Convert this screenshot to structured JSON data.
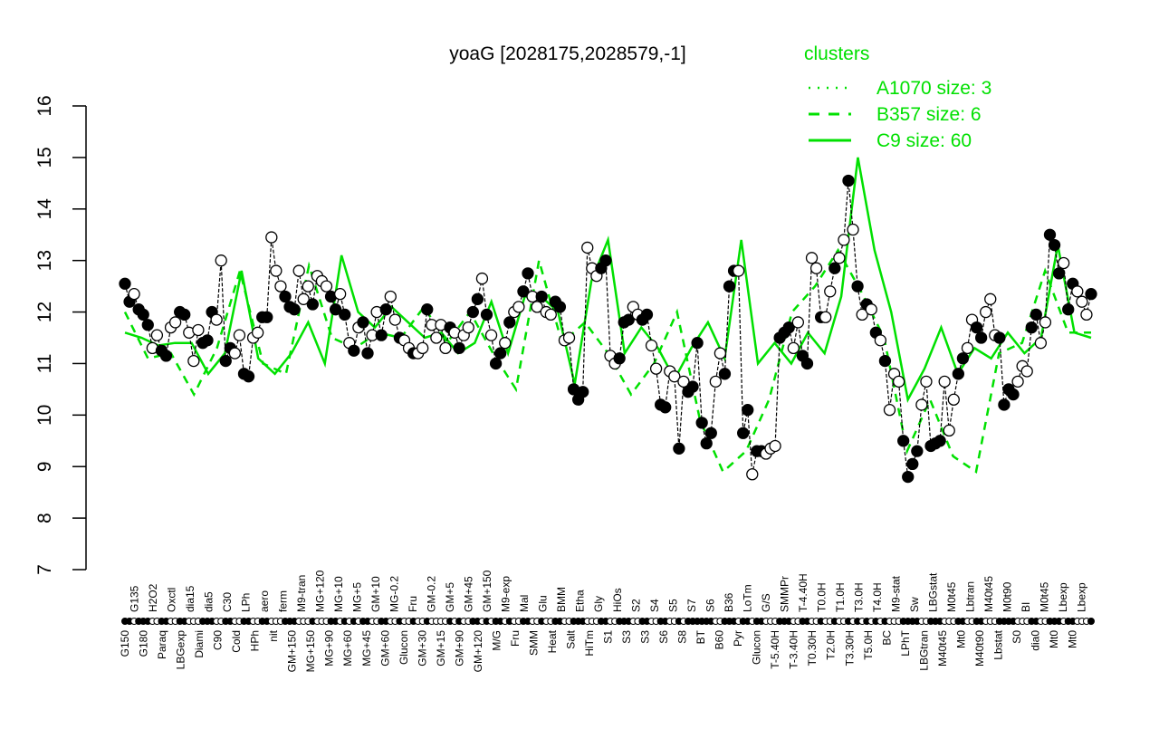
{
  "chart_data": {
    "type": "line",
    "title": "yoaG [2028175,2028579,-1]",
    "xlabel": "",
    "ylabel": "",
    "ylim": [
      7,
      16
    ],
    "yticks": [
      7,
      8,
      9,
      10,
      11,
      12,
      13,
      14,
      15,
      16
    ],
    "grid": false,
    "legend": {
      "title": "clusters",
      "placement": "top-right",
      "color": "#00e000",
      "entries": [
        {
          "label": "A1070 size: 3",
          "style": "dotted"
        },
        {
          "label": "B357 size: 6",
          "style": "dashed"
        },
        {
          "label": "C9 size: 60",
          "style": "solid"
        }
      ]
    },
    "colors": {
      "points_line": "#000000",
      "cluster": "#00e000"
    },
    "points": {
      "values": [
        12.55,
        12.2,
        12.35,
        12.05,
        11.95,
        11.75,
        11.3,
        11.55,
        11.25,
        11.15,
        11.7,
        11.8,
        12.0,
        11.95,
        11.6,
        11.05,
        11.65,
        11.4,
        11.45,
        12.0,
        11.85,
        13.0,
        11.05,
        11.3,
        11.2,
        11.55,
        10.8,
        10.75,
        11.5,
        11.6,
        11.9,
        11.9,
        13.45,
        12.8,
        12.5,
        12.3,
        12.1,
        12.05,
        12.8,
        12.25,
        12.5,
        12.15,
        12.7,
        12.6,
        12.5,
        12.3,
        12.05,
        12.35,
        11.95,
        11.4,
        11.25,
        11.7,
        11.8,
        11.2,
        11.55,
        12.0,
        11.55,
        12.05,
        12.3,
        11.85,
        11.5,
        11.45,
        11.3,
        11.2,
        11.2,
        11.3,
        12.05,
        11.75,
        11.5,
        11.75,
        11.3,
        11.7,
        11.6,
        11.3,
        11.55,
        11.7,
        12.0,
        12.25,
        12.65,
        11.95,
        11.55,
        11.0,
        11.2,
        11.4,
        11.8,
        12.0,
        12.1,
        12.4,
        12.75,
        12.3,
        12.1,
        12.3,
        12.0,
        11.95,
        12.2,
        12.1,
        11.45,
        11.5,
        10.5,
        10.3,
        10.45,
        13.25,
        12.85,
        12.7,
        12.85,
        13.0,
        11.15,
        11.0,
        11.1,
        11.8,
        11.85,
        12.1,
        11.95,
        11.85,
        11.95,
        11.35,
        10.9,
        10.2,
        10.15,
        10.85,
        10.75,
        9.35,
        10.65,
        10.45,
        10.55,
        11.4,
        9.85,
        9.45,
        9.65,
        10.65,
        11.2,
        10.8,
        12.5,
        12.8,
        12.8,
        9.65,
        10.1,
        8.85,
        9.3,
        9.3,
        9.25,
        9.35,
        9.4,
        11.5,
        11.6,
        11.7,
        11.3,
        11.8,
        11.15,
        11.0,
        13.05,
        12.85,
        11.9,
        11.9,
        12.4,
        12.85,
        13.05,
        13.4,
        14.55,
        13.6,
        12.5,
        11.95,
        12.15,
        12.05,
        11.6,
        11.45,
        11.05,
        10.1,
        10.8,
        10.65,
        9.5,
        8.8,
        9.05,
        9.3,
        10.2,
        10.65,
        9.4,
        9.45,
        9.5,
        10.65,
        9.7,
        10.3,
        10.8,
        11.1,
        11.3,
        11.85,
        11.7,
        11.5,
        12.0,
        12.25,
        11.55,
        11.5,
        10.2,
        10.5,
        10.4,
        10.65,
        10.95,
        10.85,
        11.7,
        11.95,
        11.4,
        11.8,
        13.5,
        13.3,
        12.75,
        12.95,
        12.05,
        12.55,
        12.4,
        12.2,
        11.95,
        12.35
      ],
      "filled": [
        1,
        1,
        0,
        1,
        1,
        1,
        0,
        0,
        1,
        1,
        0,
        0,
        1,
        1,
        0,
        0,
        0,
        1,
        1,
        1,
        0,
        0,
        1,
        1,
        0,
        0,
        1,
        1,
        0,
        0,
        1,
        1,
        0,
        0,
        0,
        1,
        1,
        1,
        0,
        0,
        0,
        1,
        0,
        0,
        0,
        1,
        1,
        0,
        1,
        0,
        1,
        0,
        1,
        1,
        0,
        0,
        1,
        1,
        0,
        0,
        1,
        0,
        0,
        1,
        0,
        0,
        1,
        0,
        0,
        0,
        0,
        1,
        0,
        1,
        0,
        0,
        1,
        1,
        0,
        1,
        0,
        1,
        1,
        0,
        1,
        0,
        0,
        1,
        1,
        0,
        0,
        1,
        0,
        0,
        1,
        1,
        0,
        0,
        1,
        1,
        1,
        0,
        0,
        0,
        1,
        1,
        0,
        0,
        1,
        1,
        1,
        0,
        0,
        1,
        1,
        0,
        0,
        1,
        1,
        0,
        0,
        1,
        0,
        1,
        1,
        1,
        1,
        1,
        1,
        0,
        0,
        1,
        1,
        1,
        0,
        1,
        1,
        0,
        1,
        1,
        0,
        0,
        0,
        1,
        1,
        1,
        0,
        0,
        1,
        1,
        0,
        0,
        1,
        0,
        0,
        1,
        0,
        0,
        1,
        0,
        1,
        0,
        1,
        0,
        1,
        0,
        1,
        0,
        0,
        0,
        1,
        1,
        1,
        1,
        0,
        0,
        1,
        1,
        1,
        0,
        0,
        0,
        1,
        1,
        0,
        0,
        1,
        1,
        0,
        0,
        0,
        1,
        1,
        1,
        1,
        0,
        0,
        0,
        1,
        1,
        0,
        0,
        1,
        1,
        1,
        0,
        1,
        1,
        0,
        0,
        0,
        1
      ]
    },
    "series": [
      {
        "name": "C9 size: 60",
        "style": "solid",
        "values": [
          11.6,
          11.5,
          11.35,
          11.4,
          11.4,
          10.8,
          11.2,
          12.8,
          11.1,
          10.8,
          11.2,
          11.8,
          11.0,
          13.1,
          12.0,
          11.7,
          12.1,
          11.8,
          11.5,
          11.6,
          11.2,
          11.4,
          12.2,
          11.2,
          12.3,
          12.3,
          12.0,
          10.6,
          12.6,
          13.4,
          11.2,
          11.7,
          11.3,
          10.7,
          11.3,
          11.8,
          11.1,
          13.4,
          11.0,
          11.4,
          11.0,
          11.6,
          11.2,
          12.3,
          15.0,
          13.2,
          12.0,
          10.3,
          10.9,
          11.7,
          10.8,
          11.3,
          11.1,
          11.6,
          11.2,
          11.5,
          13.3,
          11.6,
          11.5
        ]
      },
      {
        "name": "B357 size: 6",
        "style": "dashed",
        "values": [
          12.0,
          11.1,
          11.2,
          10.4,
          11.3,
          12.8,
          11.0,
          10.8,
          12.9,
          11.5,
          11.3,
          11.6,
          11.5,
          12.1,
          11.4,
          12.0,
          11.2,
          10.5,
          13.0,
          11.4,
          11.8,
          11.2,
          10.4,
          11.0,
          12.0,
          9.9,
          8.9,
          9.3,
          10.3,
          12.0,
          12.5,
          13.2,
          12.4,
          11.5,
          9.3,
          10.3,
          9.2,
          8.9,
          11.2,
          11.4,
          12.8,
          11.6,
          11.6
        ]
      }
    ],
    "x_labels": {
      "bottom": [
        "G150",
        "G180",
        "Paraq",
        "LBGexp",
        "Diami",
        "C90",
        "Cold",
        "HPh",
        "nit",
        "GM+150",
        "MG+150",
        "MG+90",
        "MG+60",
        "MG+45",
        "GM+60",
        "Glucon",
        "GM+30",
        "GM+15",
        "GM+90",
        "GM+120",
        "M/G",
        "Fru",
        "SMM",
        "Heat",
        "Salt",
        "HiTm",
        "S1",
        "S3",
        "S3",
        "S6",
        "S8",
        "BT",
        "B60",
        "Pyr",
        "Glucon",
        "T-5.40H",
        "T-3.40H",
        "T0.30H",
        "T2.0H",
        "T3.30H",
        "T5.0H",
        "BC",
        "LPhT",
        "LBGtran",
        "M40t45",
        "Mt0",
        "M40t90",
        "Lbstat",
        "S0",
        "dia0",
        "Mt0",
        "Mt0"
      ],
      "top": [
        "G135",
        "H2O2",
        "Oxctl",
        "dia15",
        "dia5",
        "C30",
        "LPh",
        "aero",
        "ferm",
        "M9-tran",
        "MG+120",
        "MG+10",
        "MG+5",
        "GM+10",
        "MG-0.2",
        "Fru",
        "GM-0.2",
        "GM+5",
        "GM+45",
        "GM+150",
        "M9-exp",
        "Mal",
        "Glu",
        "BMM",
        "Etha",
        "Gly",
        "HiOs",
        "S2",
        "S4",
        "S5",
        "S7",
        "S6",
        "B36",
        "LoTm",
        "G/S",
        "SMMPr",
        "T-4.40H",
        "T0.0H",
        "T1.0H",
        "T3.0H",
        "T4.0H",
        "M9-stat",
        "Sw",
        "LBGstat",
        "M0t45",
        "Lbtran",
        "M40t45",
        "M0t90",
        "BI",
        "M0t45",
        "Lbexp",
        "Lbexp"
      ]
    }
  }
}
